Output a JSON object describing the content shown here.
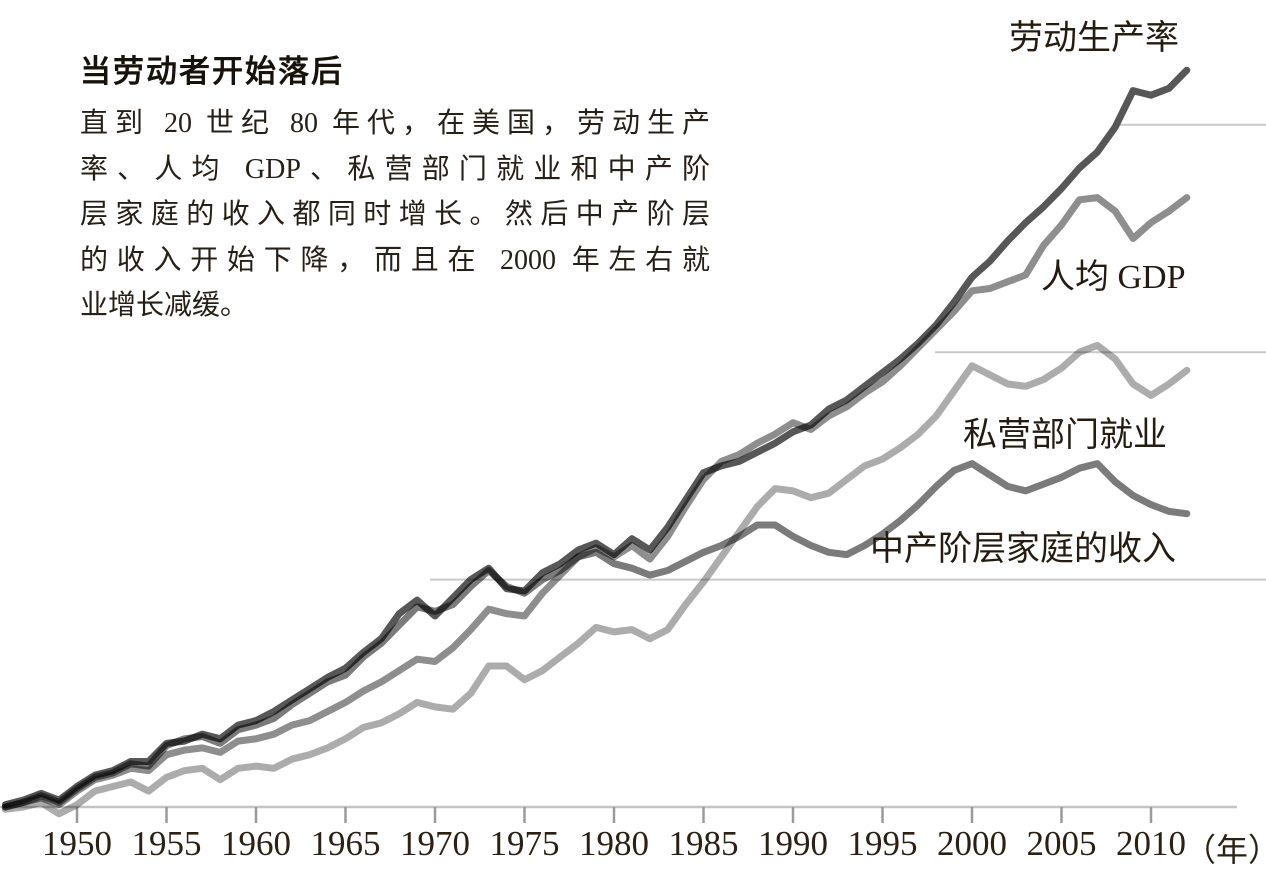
{
  "title": "当劳动者开始落后",
  "intro": {
    "lines": [
      "直到 20 世纪 80 年代，在美国，劳动生产",
      "率、人均 GDP、私营部门就业和中产阶",
      "层家庭的收入都同时增长。然后中产阶层",
      "的收入开始下降，而且在 2000 年左右就",
      "业增长减缓。"
    ]
  },
  "chart_data": {
    "type": "line",
    "title": "当劳动者开始落后",
    "xlabel": "年",
    "x_unit_label": "（年）",
    "ylabel": "",
    "x_ticks": [
      1950,
      1955,
      1960,
      1965,
      1970,
      1975,
      1980,
      1985,
      1990,
      1995,
      2000,
      2005,
      2010
    ],
    "x_range": [
      1946,
      2012
    ],
    "y_range": [
      -10,
      340
    ],
    "grid": "partial-horizontal",
    "gridline_values": [
      100,
      200,
      300
    ],
    "baseline_value": 0,
    "legend_position": "direct-labels-right",
    "colors": {
      "productivity": "#575757",
      "gdp_per_capita": "#8e8e8e",
      "private_employment": "#acacac",
      "median_income": "#7b7b7b",
      "gridline": "#c9c9c9",
      "axis": "#c4c4c4",
      "tick": "#9a9a9a",
      "text": "#241c12"
    },
    "series": [
      {
        "name": "private_employment",
        "label": "私营部门就业",
        "color": "#acacac",
        "points": [
          [
            1946,
            -1
          ],
          [
            1947,
            0
          ],
          [
            1948,
            2
          ],
          [
            1949,
            -3
          ],
          [
            1950,
            1
          ],
          [
            1951,
            7
          ],
          [
            1952,
            9
          ],
          [
            1953,
            11
          ],
          [
            1954,
            7
          ],
          [
            1955,
            13
          ],
          [
            1956,
            16
          ],
          [
            1957,
            17
          ],
          [
            1958,
            12
          ],
          [
            1959,
            17
          ],
          [
            1960,
            18
          ],
          [
            1961,
            17
          ],
          [
            1962,
            21
          ],
          [
            1963,
            23
          ],
          [
            1964,
            26
          ],
          [
            1965,
            30
          ],
          [
            1966,
            35
          ],
          [
            1967,
            37
          ],
          [
            1968,
            41
          ],
          [
            1969,
            46
          ],
          [
            1970,
            44
          ],
          [
            1971,
            43
          ],
          [
            1972,
            50
          ],
          [
            1973,
            62
          ],
          [
            1974,
            62
          ],
          [
            1975,
            56
          ],
          [
            1976,
            60
          ],
          [
            1977,
            66
          ],
          [
            1978,
            72
          ],
          [
            1979,
            79
          ],
          [
            1980,
            77
          ],
          [
            1981,
            78
          ],
          [
            1982,
            74
          ],
          [
            1983,
            78
          ],
          [
            1984,
            89
          ],
          [
            1985,
            99
          ],
          [
            1986,
            110
          ],
          [
            1987,
            121
          ],
          [
            1988,
            132
          ],
          [
            1989,
            140
          ],
          [
            1990,
            139
          ],
          [
            1991,
            136
          ],
          [
            1992,
            138
          ],
          [
            1993,
            144
          ],
          [
            1994,
            150
          ],
          [
            1995,
            153
          ],
          [
            1996,
            158
          ],
          [
            1997,
            164
          ],
          [
            1998,
            172
          ],
          [
            1999,
            183
          ],
          [
            2000,
            194
          ],
          [
            2001,
            190
          ],
          [
            2002,
            186
          ],
          [
            2003,
            185
          ],
          [
            2004,
            188
          ],
          [
            2005,
            193
          ],
          [
            2006,
            200
          ],
          [
            2007,
            203
          ],
          [
            2008,
            197
          ],
          [
            2009,
            186
          ],
          [
            2010,
            181
          ],
          [
            2011,
            186
          ],
          [
            2012,
            192
          ]
        ]
      },
      {
        "name": "gdp_per_capita",
        "label": "人均 GDP",
        "color": "#8e8e8e",
        "points": [
          [
            1946,
            0
          ],
          [
            1947,
            2
          ],
          [
            1948,
            4
          ],
          [
            1949,
            1
          ],
          [
            1950,
            7
          ],
          [
            1951,
            12
          ],
          [
            1952,
            14
          ],
          [
            1953,
            17
          ],
          [
            1954,
            16
          ],
          [
            1955,
            23
          ],
          [
            1956,
            25
          ],
          [
            1957,
            26
          ],
          [
            1958,
            24
          ],
          [
            1959,
            29
          ],
          [
            1960,
            30
          ],
          [
            1961,
            32
          ],
          [
            1962,
            36
          ],
          [
            1963,
            38
          ],
          [
            1964,
            42
          ],
          [
            1965,
            46
          ],
          [
            1966,
            51
          ],
          [
            1967,
            55
          ],
          [
            1968,
            60
          ],
          [
            1969,
            65
          ],
          [
            1970,
            64
          ],
          [
            1971,
            70
          ],
          [
            1972,
            78
          ],
          [
            1973,
            87
          ],
          [
            1974,
            85
          ],
          [
            1975,
            84
          ],
          [
            1976,
            94
          ],
          [
            1977,
            102
          ],
          [
            1978,
            110
          ],
          [
            1979,
            114
          ],
          [
            1980,
            110
          ],
          [
            1981,
            115
          ],
          [
            1982,
            109
          ],
          [
            1983,
            119
          ],
          [
            1984,
            132
          ],
          [
            1985,
            144
          ],
          [
            1986,
            152
          ],
          [
            1987,
            155
          ],
          [
            1988,
            160
          ],
          [
            1989,
            164
          ],
          [
            1990,
            169
          ],
          [
            1991,
            166
          ],
          [
            1992,
            172
          ],
          [
            1993,
            176
          ],
          [
            1994,
            182
          ],
          [
            1995,
            187
          ],
          [
            1996,
            194
          ],
          [
            1997,
            202
          ],
          [
            1998,
            210
          ],
          [
            1999,
            218
          ],
          [
            2000,
            227
          ],
          [
            2001,
            228
          ],
          [
            2002,
            231
          ],
          [
            2003,
            234
          ],
          [
            2004,
            247
          ],
          [
            2005,
            256
          ],
          [
            2006,
            267
          ],
          [
            2007,
            268
          ],
          [
            2008,
            262
          ],
          [
            2009,
            250
          ],
          [
            2010,
            257
          ],
          [
            2011,
            262
          ],
          [
            2012,
            268
          ]
        ]
      },
      {
        "name": "median_income",
        "label": "中产阶层家庭的收入",
        "color": "#7b7b7b",
        "points": [
          [
            1946,
            0
          ],
          [
            1947,
            2
          ],
          [
            1948,
            5
          ],
          [
            1949,
            2
          ],
          [
            1950,
            8
          ],
          [
            1951,
            13
          ],
          [
            1952,
            15
          ],
          [
            1953,
            19
          ],
          [
            1954,
            18
          ],
          [
            1955,
            27
          ],
          [
            1956,
            30
          ],
          [
            1957,
            31
          ],
          [
            1958,
            28
          ],
          [
            1959,
            34
          ],
          [
            1960,
            36
          ],
          [
            1961,
            39
          ],
          [
            1962,
            45
          ],
          [
            1963,
            50
          ],
          [
            1964,
            55
          ],
          [
            1965,
            58
          ],
          [
            1966,
            66
          ],
          [
            1967,
            72
          ],
          [
            1968,
            80
          ],
          [
            1969,
            88
          ],
          [
            1970,
            86
          ],
          [
            1971,
            89
          ],
          [
            1972,
            97
          ],
          [
            1973,
            104
          ],
          [
            1974,
            97
          ],
          [
            1975,
            94
          ],
          [
            1976,
            100
          ],
          [
            1977,
            104
          ],
          [
            1978,
            110
          ],
          [
            1979,
            112
          ],
          [
            1980,
            107
          ],
          [
            1981,
            105
          ],
          [
            1982,
            102
          ],
          [
            1983,
            104
          ],
          [
            1984,
            108
          ],
          [
            1985,
            112
          ],
          [
            1986,
            115
          ],
          [
            1987,
            119
          ],
          [
            1988,
            124
          ],
          [
            1989,
            124
          ],
          [
            1990,
            119
          ],
          [
            1991,
            115
          ],
          [
            1992,
            112
          ],
          [
            1993,
            111
          ],
          [
            1994,
            115
          ],
          [
            1995,
            120
          ],
          [
            1996,
            126
          ],
          [
            1997,
            133
          ],
          [
            1998,
            141
          ],
          [
            1999,
            148
          ],
          [
            2000,
            151
          ],
          [
            2001,
            146
          ],
          [
            2002,
            141
          ],
          [
            2003,
            139
          ],
          [
            2004,
            142
          ],
          [
            2005,
            145
          ],
          [
            2006,
            149
          ],
          [
            2007,
            151
          ],
          [
            2008,
            143
          ],
          [
            2009,
            137
          ],
          [
            2010,
            133
          ],
          [
            2011,
            130
          ],
          [
            2012,
            129
          ]
        ]
      },
      {
        "name": "productivity",
        "label": "劳动生产率",
        "color": "#575757",
        "points": [
          [
            1946,
            1
          ],
          [
            1947,
            3
          ],
          [
            1948,
            6
          ],
          [
            1949,
            3
          ],
          [
            1950,
            9
          ],
          [
            1951,
            14
          ],
          [
            1952,
            16
          ],
          [
            1953,
            20
          ],
          [
            1954,
            20
          ],
          [
            1955,
            28
          ],
          [
            1956,
            29
          ],
          [
            1957,
            32
          ],
          [
            1958,
            30
          ],
          [
            1959,
            36
          ],
          [
            1960,
            38
          ],
          [
            1961,
            42
          ],
          [
            1962,
            47
          ],
          [
            1963,
            52
          ],
          [
            1964,
            57
          ],
          [
            1965,
            61
          ],
          [
            1966,
            68
          ],
          [
            1967,
            74
          ],
          [
            1968,
            85
          ],
          [
            1969,
            91
          ],
          [
            1970,
            84
          ],
          [
            1971,
            92
          ],
          [
            1972,
            100
          ],
          [
            1973,
            105
          ],
          [
            1974,
            96
          ],
          [
            1975,
            95
          ],
          [
            1976,
            103
          ],
          [
            1977,
            107
          ],
          [
            1978,
            113
          ],
          [
            1979,
            116
          ],
          [
            1980,
            111
          ],
          [
            1981,
            118
          ],
          [
            1982,
            113
          ],
          [
            1983,
            123
          ],
          [
            1984,
            135
          ],
          [
            1985,
            147
          ],
          [
            1986,
            150
          ],
          [
            1987,
            152
          ],
          [
            1988,
            156
          ],
          [
            1989,
            160
          ],
          [
            1990,
            165
          ],
          [
            1991,
            168
          ],
          [
            1992,
            175
          ],
          [
            1993,
            179
          ],
          [
            1994,
            185
          ],
          [
            1995,
            191
          ],
          [
            1996,
            197
          ],
          [
            1997,
            204
          ],
          [
            1998,
            212
          ],
          [
            1999,
            222
          ],
          [
            2000,
            233
          ],
          [
            2001,
            240
          ],
          [
            2002,
            249
          ],
          [
            2003,
            257
          ],
          [
            2004,
            264
          ],
          [
            2005,
            272
          ],
          [
            2006,
            281
          ],
          [
            2007,
            288
          ],
          [
            2008,
            299
          ],
          [
            2009,
            315
          ],
          [
            2010,
            313
          ],
          [
            2011,
            316
          ],
          [
            2012,
            324
          ]
        ]
      }
    ]
  }
}
